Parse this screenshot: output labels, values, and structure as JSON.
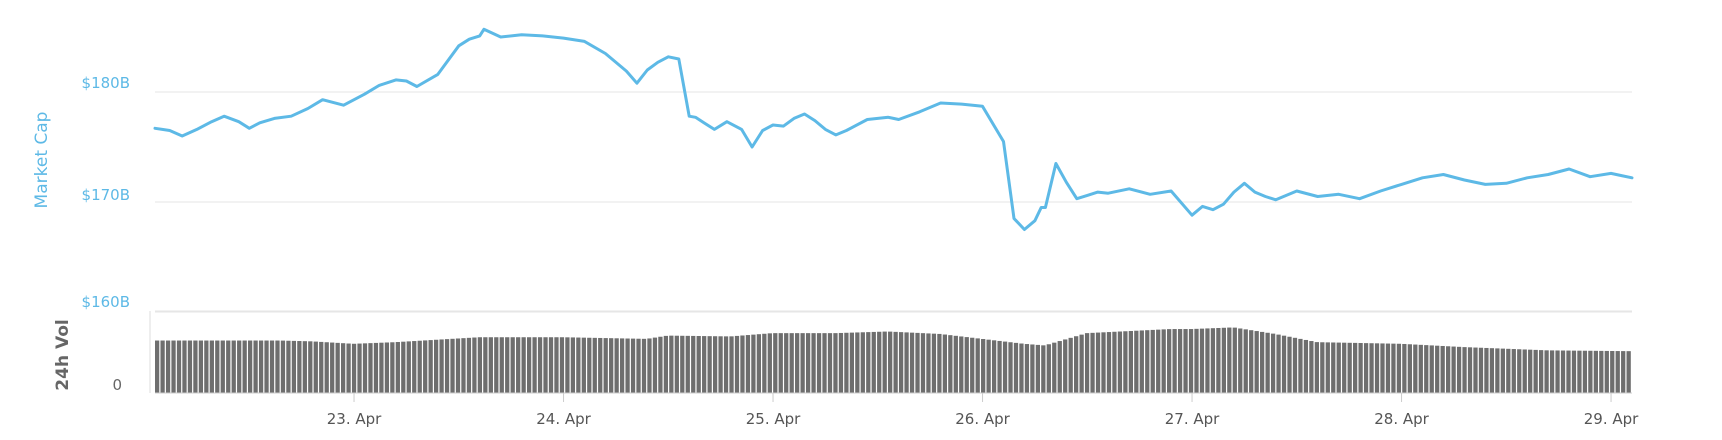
{
  "colors": {
    "price_line": "#5db9e6",
    "volume_bar": "#666666",
    "volume_bar_fill": "#6e6e6e",
    "grid": "#e6e6e6",
    "axis": "#cccccc"
  },
  "chart_data": [
    {
      "type": "line",
      "ylabel": "Market Cap",
      "ylim": [
        160,
        190
      ],
      "y_ticks": [
        {
          "value": 160,
          "label": "$160B"
        },
        {
          "value": 170,
          "label": "$170B"
        },
        {
          "value": 180,
          "label": "$180B"
        }
      ],
      "grid": true,
      "x_ticks": [
        {
          "value": 23,
          "label": "23. Apr"
        },
        {
          "value": 24,
          "label": "24. Apr"
        },
        {
          "value": 25,
          "label": "25. Apr"
        },
        {
          "value": 26,
          "label": "26. Apr"
        },
        {
          "value": 27,
          "label": "27. Apr"
        },
        {
          "value": 28,
          "label": "28. Apr"
        },
        {
          "value": 29,
          "label": "29. Apr"
        }
      ],
      "xlim": [
        22.05,
        29.1
      ],
      "x": [
        22.05,
        22.12,
        22.18,
        22.25,
        22.32,
        22.38,
        22.45,
        22.5,
        22.55,
        22.62,
        22.7,
        22.78,
        22.85,
        22.95,
        23.05,
        23.12,
        23.2,
        23.25,
        23.3,
        23.4,
        23.5,
        23.55,
        23.6,
        23.62,
        23.7,
        23.8,
        23.9,
        24.0,
        24.1,
        24.2,
        24.3,
        24.35,
        24.4,
        24.45,
        24.5,
        24.55,
        24.6,
        24.63,
        24.67,
        24.72,
        24.78,
        24.85,
        24.9,
        24.95,
        25.0,
        25.05,
        25.1,
        25.15,
        25.2,
        25.25,
        25.3,
        25.35,
        25.45,
        25.55,
        25.6,
        25.7,
        25.8,
        25.9,
        26.0,
        26.1,
        26.15,
        26.2,
        26.25,
        26.28,
        26.3,
        26.35,
        26.4,
        26.45,
        26.5,
        26.55,
        26.6,
        26.7,
        26.8,
        26.9,
        27.0,
        27.05,
        27.1,
        27.15,
        27.2,
        27.25,
        27.3,
        27.35,
        27.4,
        27.5,
        27.6,
        27.7,
        27.8,
        27.9,
        28.0,
        28.1,
        28.2,
        28.3,
        28.4,
        28.5,
        28.6,
        28.7,
        28.8,
        28.9,
        29.0,
        29.05,
        29.1
      ],
      "values": [
        176.7,
        176.5,
        176.0,
        176.6,
        177.3,
        177.8,
        177.3,
        176.7,
        177.2,
        177.6,
        177.8,
        178.5,
        179.3,
        178.8,
        179.8,
        180.6,
        181.1,
        181.0,
        180.5,
        181.6,
        184.2,
        184.8,
        185.1,
        185.7,
        185.0,
        185.2,
        185.1,
        184.9,
        184.6,
        183.5,
        181.9,
        180.8,
        182.0,
        182.7,
        183.2,
        183.0,
        177.8,
        177.7,
        177.2,
        176.6,
        177.3,
        176.6,
        175.0,
        176.5,
        177.0,
        176.9,
        177.6,
        178.0,
        177.4,
        176.6,
        176.1,
        176.5,
        177.5,
        177.7,
        177.5,
        178.2,
        179.0,
        178.9,
        178.7,
        175.5,
        168.5,
        167.5,
        168.3,
        169.5,
        169.5,
        173.5,
        171.8,
        170.3,
        170.6,
        170.9,
        170.8,
        171.2,
        170.7,
        171.0,
        168.8,
        169.6,
        169.3,
        169.8,
        170.9,
        171.7,
        170.9,
        170.5,
        170.2,
        171.0,
        170.5,
        170.7,
        170.3,
        171.0,
        171.6,
        172.2,
        172.5,
        172.0,
        171.6,
        171.7,
        172.2,
        172.5,
        173.0,
        172.3,
        172.6,
        172.4,
        172.2
      ],
      "series": [
        {
          "values_ref": "values"
        }
      ]
    },
    {
      "type": "bar",
      "ylabel": "24h Vol",
      "y_ticks": [
        {
          "value": 0,
          "label": "0"
        }
      ],
      "ylim": [
        0,
        1
      ],
      "xlim": [
        22.05,
        29.1
      ],
      "bar_count": 270,
      "profile_x": [
        22.05,
        22.4,
        22.65,
        22.8,
        23.0,
        23.2,
        23.6,
        24.0,
        24.2,
        24.4,
        24.5,
        24.8,
        25.0,
        25.3,
        25.55,
        25.8,
        26.2,
        26.3,
        26.5,
        26.9,
        27.0,
        27.2,
        27.4,
        27.6,
        28.0,
        28.3,
        28.7,
        29.1
      ],
      "profile_y": [
        0.64,
        0.64,
        0.64,
        0.63,
        0.6,
        0.62,
        0.68,
        0.68,
        0.67,
        0.66,
        0.7,
        0.69,
        0.73,
        0.73,
        0.75,
        0.72,
        0.6,
        0.58,
        0.73,
        0.78,
        0.78,
        0.8,
        0.72,
        0.62,
        0.6,
        0.56,
        0.52,
        0.51
      ]
    }
  ]
}
